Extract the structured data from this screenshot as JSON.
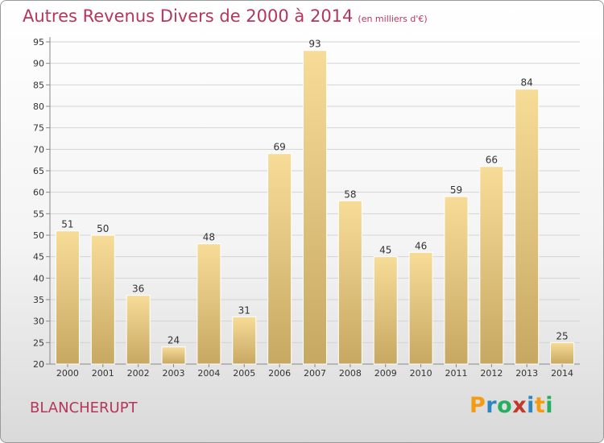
{
  "header": {
    "title": "Autres Revenus Divers de 2000 à 2014",
    "subtitle": "(en milliers d'€)"
  },
  "footer": {
    "town": "BLANCHERUPT",
    "brand": "Proxiti",
    "brand_letters": [
      {
        "ch": "P",
        "color": "#f39c12"
      },
      {
        "ch": "r",
        "color": "#2e86c1"
      },
      {
        "ch": "o",
        "color": "#27ae60"
      },
      {
        "ch": "x",
        "color": "#c0392b"
      },
      {
        "ch": "i",
        "color": "#2e86c1"
      },
      {
        "ch": "t",
        "color": "#f39c12"
      },
      {
        "ch": "i",
        "color": "#27ae60"
      }
    ]
  },
  "colors": {
    "title": "#b5365c",
    "bar_light": "#f7dc98",
    "bar_dark": "#c7a862",
    "grid": "#d4d4d4"
  },
  "chart_data": {
    "type": "bar",
    "title": "Autres Revenus Divers de 2000 à 2014",
    "subtitle": "(en milliers d'€)",
    "categories": [
      "2000",
      "2001",
      "2002",
      "2003",
      "2004",
      "2005",
      "2006",
      "2007",
      "2008",
      "2009",
      "2010",
      "2011",
      "2012",
      "2013",
      "2014"
    ],
    "values": [
      51,
      50,
      36,
      24,
      48,
      31,
      69,
      93,
      58,
      45,
      46,
      59,
      66,
      84,
      25
    ],
    "ylim": [
      20,
      95
    ],
    "yticks": [
      20,
      25,
      30,
      35,
      40,
      45,
      50,
      55,
      60,
      65,
      70,
      75,
      80,
      85,
      90,
      95
    ],
    "grid": true,
    "data_labels": true
  }
}
